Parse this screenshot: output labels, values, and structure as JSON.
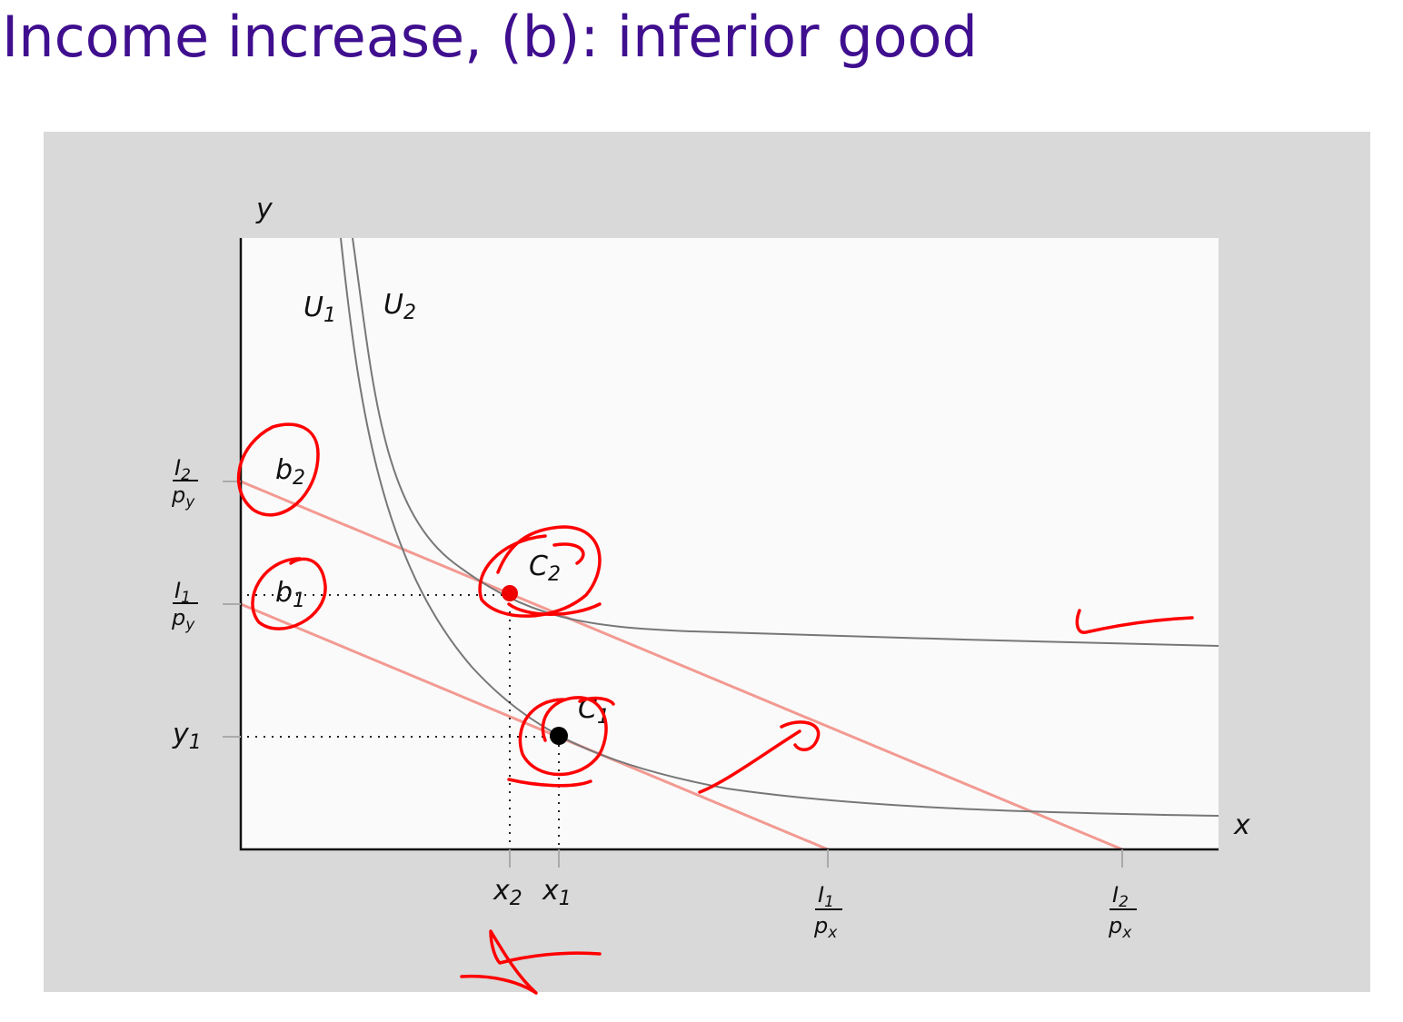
{
  "title": "Income increase, (b): inferior good",
  "axes": {
    "x": "x",
    "y": "y"
  },
  "curves": [
    {
      "base": "U",
      "sub": "1"
    },
    {
      "base": "U",
      "sub": "2"
    }
  ],
  "points": [
    {
      "base": "C",
      "sub": "1"
    },
    {
      "base": "C",
      "sub": "2"
    },
    {
      "base": "b",
      "sub": "1"
    },
    {
      "base": "b",
      "sub": "2"
    }
  ],
  "y_ticks": [
    {
      "num": {
        "base": "I",
        "sub": "2"
      },
      "den": {
        "base": "p",
        "sub": "y"
      }
    },
    {
      "num": {
        "base": "I",
        "sub": "1"
      },
      "den": {
        "base": "p",
        "sub": "y"
      }
    },
    {
      "base": "y",
      "sub": "1"
    }
  ],
  "x_ticks": [
    {
      "base": "x",
      "sub": "2"
    },
    {
      "base": "x",
      "sub": "1"
    },
    {
      "num": {
        "base": "I",
        "sub": "1"
      },
      "den": {
        "base": "p",
        "sub": "x"
      }
    },
    {
      "num": {
        "base": "I",
        "sub": "2"
      },
      "den": {
        "base": "p",
        "sub": "x"
      }
    }
  ]
}
